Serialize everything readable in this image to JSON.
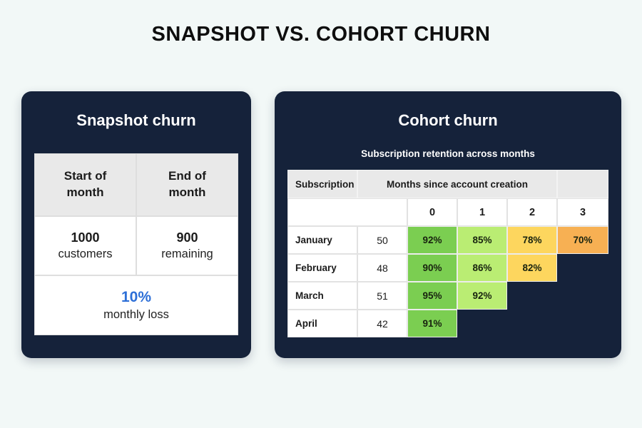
{
  "page": {
    "title": "SNAPSHOT VS. COHORT CHURN",
    "background": "#f2f8f7"
  },
  "palette": {
    "card_navy": "#15223a",
    "header_gray": "#e9e9e9",
    "accent_blue": "#2d6fd7",
    "green": "#7bce51",
    "light_green": "#baed73",
    "yellow": "#fdd65e",
    "orange": "#f7b053"
  },
  "snapshot": {
    "title": "Snapshot churn",
    "table": {
      "header_left": "Start of\nmonth",
      "header_right": "End of\nmonth",
      "start_value": "1000",
      "start_label": "customers",
      "end_value": "900",
      "end_label": "remaining",
      "footer_value": "10%",
      "footer_label": "monthly loss"
    }
  },
  "cohort": {
    "title": "Cohort churn",
    "subtitle": "Subscription retention across months",
    "table": {
      "col_header_left": "Subscription",
      "col_header_span": "Months since account creation",
      "month_numbers": [
        "0",
        "1",
        "2",
        "3"
      ],
      "rows": [
        {
          "month": "January",
          "count": "50",
          "values": [
            "92%",
            "85%",
            "78%",
            "70%"
          ]
        },
        {
          "month": "February",
          "count": "48",
          "values": [
            "90%",
            "86%",
            "82%"
          ]
        },
        {
          "month": "March",
          "count": "51",
          "values": [
            "95%",
            "92%"
          ]
        },
        {
          "month": "April",
          "count": "42",
          "values": [
            "91%"
          ]
        }
      ]
    }
  },
  "chart_data": [
    {
      "type": "table",
      "title": "Snapshot churn",
      "columns": [
        "Start of month",
        "End of month"
      ],
      "values": [
        1000,
        900
      ],
      "value_labels": [
        "customers",
        "remaining"
      ],
      "summary": {
        "monthly_loss_pct": 10
      }
    },
    {
      "type": "heatmap",
      "title": "Cohort churn",
      "subtitle": "Subscription retention across months",
      "xlabel": "Months since account creation",
      "x": [
        0,
        1,
        2,
        3
      ],
      "categories": [
        "January",
        "February",
        "March",
        "April"
      ],
      "cohort_sizes": [
        50,
        48,
        51,
        42
      ],
      "series": [
        {
          "name": "January",
          "values": [
            92,
            85,
            78,
            70
          ]
        },
        {
          "name": "February",
          "values": [
            90,
            86,
            82,
            null
          ]
        },
        {
          "name": "March",
          "values": [
            95,
            92,
            null,
            null
          ]
        },
        {
          "name": "April",
          "values": [
            91,
            null,
            null,
            null
          ]
        }
      ],
      "color_scale": {
        "high": "#7bce51",
        "mid_high": "#baed73",
        "mid_low": "#fdd65e",
        "low": "#f7b053"
      }
    }
  ]
}
